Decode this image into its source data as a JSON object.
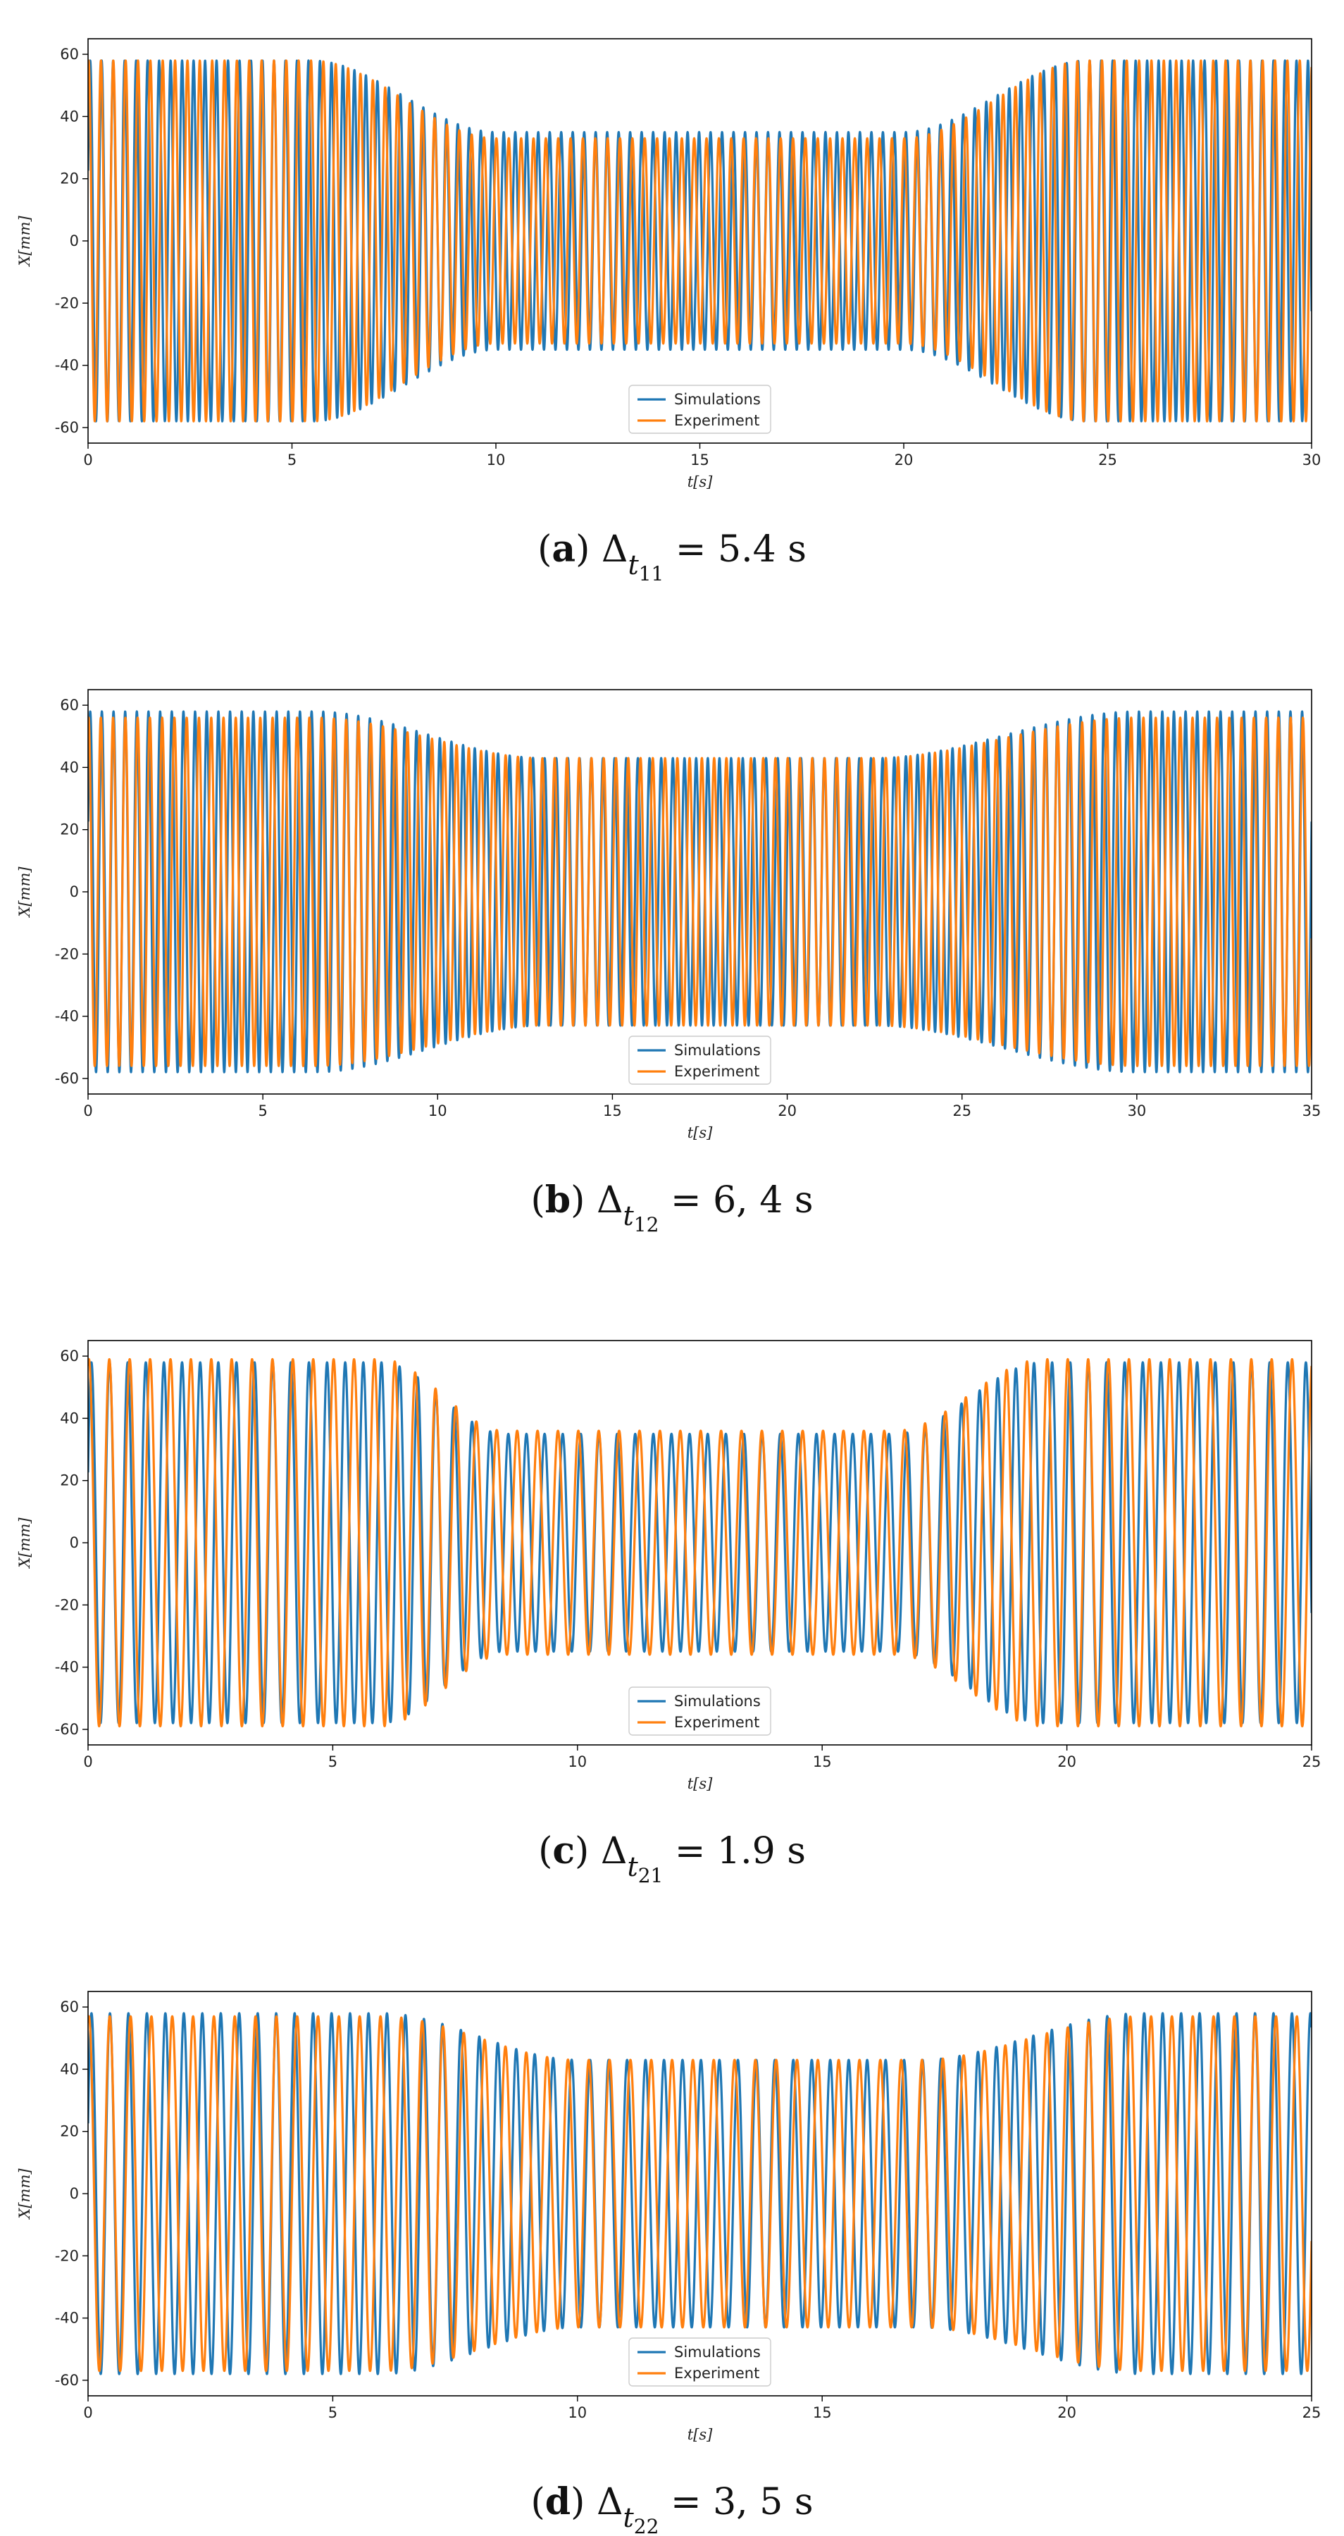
{
  "chart_data": [
    {
      "type": "line",
      "panel_label": "a",
      "caption": {
        "symbol": "Δ",
        "sub_var": "t",
        "sub_index": "11",
        "value_text": "= 5.4 s"
      },
      "xlabel": "t[s]",
      "ylabel": "X[mm]",
      "xlim": [
        0,
        30
      ],
      "ylim": [
        -65,
        65
      ],
      "xticks": [
        0,
        5,
        10,
        15,
        20,
        25,
        30
      ],
      "yticks": [
        -60,
        -40,
        -20,
        0,
        20,
        40,
        60
      ],
      "grid": false,
      "legend_position": "bottom-center",
      "series": [
        {
          "name": "Simulations",
          "color": "#1f77b4",
          "frequency_hz": 3.55,
          "phase": 0.4,
          "envelope": [
            [
              0,
              58
            ],
            [
              5.5,
              58
            ],
            [
              10,
              35
            ],
            [
              20,
              35
            ],
            [
              24.5,
              58
            ],
            [
              30,
              58
            ]
          ]
        },
        {
          "name": "Experiment",
          "color": "#ff7f0e",
          "frequency_hz": 3.3,
          "phase": 1.3,
          "envelope": [
            [
              0,
              58
            ],
            [
              5.5,
              58
            ],
            [
              10,
              33
            ],
            [
              20,
              33
            ],
            [
              24.5,
              58
            ],
            [
              30,
              58
            ]
          ]
        }
      ]
    },
    {
      "type": "line",
      "panel_label": "b",
      "caption": {
        "symbol": "Δ",
        "sub_var": "t",
        "sub_index": "12",
        "value_text": "= 6, 4 s"
      },
      "xlabel": "t[s]",
      "ylabel": "X[mm]",
      "xlim": [
        0,
        35
      ],
      "ylim": [
        -65,
        65
      ],
      "xticks": [
        0,
        5,
        10,
        15,
        20,
        25,
        30,
        35
      ],
      "yticks": [
        -60,
        -40,
        -20,
        0,
        20,
        40,
        60
      ],
      "grid": false,
      "legend_position": "bottom-center",
      "series": [
        {
          "name": "Simulations",
          "color": "#1f77b4",
          "frequency_hz": 3.0,
          "phase": 0.4,
          "envelope": [
            [
              0,
              58
            ],
            [
              6.5,
              58
            ],
            [
              13,
              43
            ],
            [
              22.5,
              43
            ],
            [
              30,
              58
            ],
            [
              35,
              58
            ]
          ]
        },
        {
          "name": "Experiment",
          "color": "#ff7f0e",
          "frequency_hz": 2.85,
          "phase": 1.3,
          "envelope": [
            [
              0,
              56
            ],
            [
              6.5,
              56
            ],
            [
              13,
              43
            ],
            [
              22.5,
              43
            ],
            [
              30,
              56
            ],
            [
              35,
              56
            ]
          ]
        }
      ]
    },
    {
      "type": "line",
      "panel_label": "c",
      "caption": {
        "symbol": "Δ",
        "sub_var": "t",
        "sub_index": "21",
        "value_text": "= 1.9 s"
      },
      "xlabel": "t[s]",
      "ylabel": "X[mm]",
      "xlim": [
        0,
        25
      ],
      "ylim": [
        -65,
        65
      ],
      "xticks": [
        0,
        5,
        10,
        15,
        20,
        25
      ],
      "yticks": [
        -60,
        -40,
        -20,
        0,
        20,
        40,
        60
      ],
      "grid": false,
      "legend_position": "bottom-center",
      "series": [
        {
          "name": "Simulations",
          "color": "#1f77b4",
          "frequency_hz": 2.7,
          "phase": 0.4,
          "envelope": [
            [
              0,
              58
            ],
            [
              6,
              58
            ],
            [
              8.5,
              35
            ],
            [
              16.5,
              35
            ],
            [
              19.5,
              58
            ],
            [
              25,
              58
            ]
          ]
        },
        {
          "name": "Experiment",
          "color": "#ff7f0e",
          "frequency_hz": 2.4,
          "phase": 1.3,
          "envelope": [
            [
              0,
              59
            ],
            [
              6,
              59
            ],
            [
              8.5,
              36
            ],
            [
              16.5,
              36
            ],
            [
              19.5,
              59
            ],
            [
              25,
              59
            ]
          ]
        }
      ]
    },
    {
      "type": "line",
      "panel_label": "d",
      "caption": {
        "symbol": "Δ",
        "sub_var": "t",
        "sub_index": "22",
        "value_text": "= 3, 5 s"
      },
      "xlabel": "t[s]",
      "ylabel": "X[mm]",
      "xlim": [
        0,
        25
      ],
      "ylim": [
        -65,
        65
      ],
      "xticks": [
        0,
        5,
        10,
        15,
        20,
        25
      ],
      "yticks": [
        -60,
        -40,
        -20,
        0,
        20,
        40,
        60
      ],
      "grid": false,
      "legend_position": "bottom-center",
      "series": [
        {
          "name": "Simulations",
          "color": "#1f77b4",
          "frequency_hz": 2.65,
          "phase": 0.4,
          "envelope": [
            [
              0,
              58
            ],
            [
              6,
              58
            ],
            [
              10,
              43
            ],
            [
              17,
              43
            ],
            [
              21.5,
              58
            ],
            [
              25,
              58
            ]
          ]
        },
        {
          "name": "Experiment",
          "color": "#ff7f0e",
          "frequency_hz": 2.35,
          "phase": 1.3,
          "envelope": [
            [
              0,
              57
            ],
            [
              6,
              57
            ],
            [
              10,
              43
            ],
            [
              17,
              43
            ],
            [
              21.5,
              57
            ],
            [
              25,
              57
            ]
          ]
        }
      ]
    }
  ]
}
